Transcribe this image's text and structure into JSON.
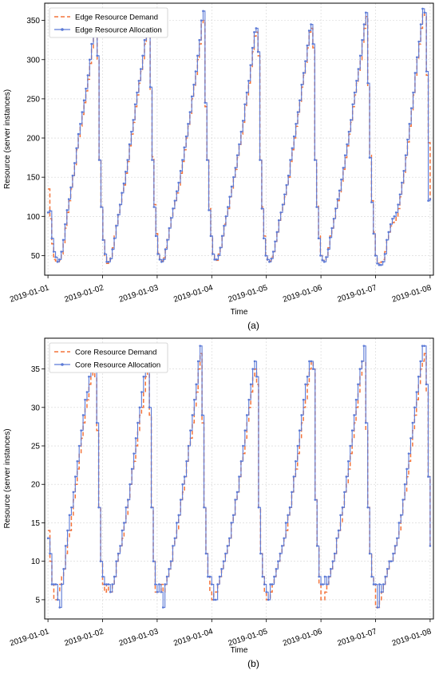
{
  "colors": {
    "demand": "#f4733a",
    "allocation": "#5b79d6",
    "grid": "#d4d4d4",
    "axis": "#000000"
  },
  "chart_data": [
    {
      "type": "line",
      "panel_label": "(a)",
      "xlabel": "Time",
      "ylabel": "Resource (server instances)",
      "x_ticks": [
        "2019-01-01",
        "2019-01-02",
        "2019-01-03",
        "2019-01-04",
        "2019-01-05",
        "2019-01-06",
        "2019-01-07",
        "2019-01-08"
      ],
      "y_ticks": [
        50,
        100,
        150,
        200,
        250,
        300,
        350
      ],
      "xlim": [
        -0.06,
        7.06
      ],
      "ylim": [
        25,
        372
      ],
      "grid": true,
      "legend_position": "top-left",
      "series": [
        {
          "name": "Edge Resource Demand",
          "style": "dashed",
          "color": "#f4733a",
          "values": [
            135,
            97,
            65,
            45,
            43,
            42,
            44,
            52,
            65,
            85,
            105,
            120,
            135,
            150,
            165,
            185,
            200,
            215,
            230,
            245,
            260,
            275,
            295,
            315,
            330,
            340,
            300,
            172,
            112,
            72,
            50,
            40,
            44,
            48,
            60,
            75,
            90,
            105,
            115,
            130,
            140,
            155,
            170,
            190,
            205,
            220,
            240,
            255,
            270,
            285,
            300,
            320,
            340,
            345,
            260,
            176,
            115,
            78,
            53,
            45,
            43,
            47,
            60,
            72,
            85,
            100,
            110,
            120,
            130,
            140,
            155,
            170,
            185,
            200,
            215,
            230,
            250,
            265,
            280,
            300,
            320,
            345,
            350,
            240,
            172,
            110,
            75,
            52,
            46,
            44,
            52,
            60,
            75,
            90,
            100,
            110,
            125,
            135,
            150,
            160,
            175,
            190,
            205,
            220,
            240,
            255,
            270,
            290,
            310,
            330,
            335,
            305,
            172,
            112,
            75,
            50,
            44,
            43,
            48,
            55,
            68,
            80,
            95,
            105,
            115,
            125,
            140,
            150,
            170,
            185,
            200,
            215,
            230,
            245,
            265,
            280,
            295,
            315,
            335,
            340,
            315,
            172,
            115,
            75,
            50,
            44,
            43,
            50,
            60,
            75,
            85,
            97,
            110,
            120,
            130,
            145,
            160,
            175,
            190,
            205,
            220,
            240,
            255,
            270,
            285,
            300,
            320,
            340,
            355,
            265,
            178,
            120,
            80,
            50,
            42,
            38,
            42,
            45,
            55,
            72,
            80,
            88,
            92,
            95,
            100,
            110,
            125,
            140,
            155,
            175,
            195,
            215,
            235,
            255,
            280,
            300,
            320,
            340,
            360,
            355,
            280,
            194,
            122
          ]
        },
        {
          "name": "Edge Resource Allocation",
          "style": "solid-markers",
          "color": "#5b79d6",
          "values": [
            105,
            107,
            72,
            55,
            48,
            42,
            45,
            55,
            70,
            90,
            108,
            122,
            137,
            152,
            168,
            187,
            205,
            218,
            233,
            248,
            263,
            280,
            300,
            320,
            335,
            345,
            305,
            172,
            112,
            70,
            52,
            42,
            42,
            46,
            58,
            72,
            88,
            102,
            115,
            130,
            142,
            157,
            172,
            192,
            208,
            223,
            243,
            258,
            273,
            288,
            305,
            325,
            345,
            348,
            265,
            172,
            112,
            75,
            52,
            45,
            42,
            45,
            58,
            70,
            85,
            98,
            110,
            120,
            132,
            143,
            158,
            172,
            188,
            202,
            218,
            233,
            253,
            268,
            285,
            305,
            325,
            350,
            362,
            245,
            172,
            108,
            75,
            52,
            45,
            45,
            50,
            60,
            75,
            88,
            100,
            112,
            125,
            138,
            150,
            162,
            178,
            192,
            208,
            222,
            243,
            258,
            273,
            293,
            315,
            335,
            340,
            310,
            172,
            110,
            72,
            50,
            45,
            42,
            46,
            55,
            68,
            80,
            95,
            105,
            115,
            128,
            140,
            152,
            172,
            187,
            202,
            218,
            233,
            248,
            268,
            283,
            298,
            318,
            337,
            345,
            320,
            172,
            112,
            72,
            50,
            44,
            42,
            48,
            58,
            73,
            85,
            97,
            110,
            122,
            133,
            147,
            162,
            178,
            192,
            208,
            223,
            243,
            258,
            273,
            288,
            305,
            325,
            345,
            360,
            270,
            175,
            118,
            78,
            50,
            40,
            38,
            38,
            42,
            52,
            70,
            80,
            90,
            97,
            100,
            105,
            115,
            128,
            143,
            158,
            178,
            198,
            218,
            238,
            258,
            283,
            303,
            323,
            345,
            365,
            360,
            285,
            120,
            122
          ]
        }
      ]
    },
    {
      "type": "line",
      "panel_label": "(b)",
      "xlabel": "Time",
      "ylabel": "Resource (server instances)",
      "x_ticks": [
        "2019-01-01",
        "2019-01-02",
        "2019-01-03",
        "2019-01-04",
        "2019-01-05",
        "2019-01-06",
        "2019-01-07",
        "2019-01-08"
      ],
      "y_ticks": [
        5,
        10,
        15,
        20,
        25,
        30,
        35
      ],
      "xlim": [
        -0.06,
        7.06
      ],
      "ylim": [
        2.5,
        39.0
      ],
      "grid": true,
      "legend_position": "top-left",
      "series": [
        {
          "name": "Core Resource Demand",
          "style": "dashed",
          "color": "#f4733a",
          "values": [
            14,
            10,
            7,
            5,
            5,
            6,
            7,
            8,
            9,
            11,
            13,
            14,
            16,
            18,
            20,
            22,
            24,
            26,
            28,
            30,
            31,
            33,
            34,
            35,
            34,
            27,
            17,
            10,
            7,
            6,
            7,
            6,
            6,
            7,
            8,
            10,
            11,
            12,
            13,
            15,
            16,
            18,
            20,
            22,
            23,
            25,
            27,
            29,
            30,
            32,
            34,
            35,
            29,
            17,
            10,
            6,
            6,
            6,
            7,
            6,
            7,
            8,
            9,
            10,
            12,
            13,
            14,
            16,
            18,
            19,
            21,
            23,
            25,
            26,
            28,
            30,
            32,
            35,
            37,
            28,
            17,
            11,
            8,
            6,
            5,
            6,
            6,
            7,
            8,
            9,
            10,
            11,
            12,
            13,
            15,
            16,
            18,
            19,
            21,
            23,
            24,
            26,
            28,
            30,
            32,
            34,
            35,
            33,
            17,
            11,
            8,
            6,
            5,
            5,
            6,
            7,
            8,
            9,
            10,
            11,
            12,
            13,
            14,
            16,
            17,
            19,
            21,
            22,
            24,
            26,
            28,
            30,
            31,
            33,
            35,
            36,
            35,
            18,
            12,
            7,
            5,
            5,
            6,
            7,
            8,
            9,
            10,
            11,
            13,
            14,
            15,
            17,
            19,
            20,
            22,
            24,
            26,
            28,
            30,
            32,
            34,
            36,
            36,
            27,
            17,
            11,
            8,
            7,
            4,
            4,
            5,
            6,
            7,
            8,
            9,
            10,
            10,
            11,
            12,
            13,
            14,
            16,
            18,
            19,
            21,
            23,
            25,
            27,
            29,
            31,
            33,
            35,
            36,
            37,
            32,
            21,
            12
          ]
        },
        {
          "name": "Core Resource Allocation",
          "style": "solid-markers",
          "color": "#5b79d6",
          "values": [
            13,
            11,
            7,
            7,
            7,
            5,
            4,
            7,
            9,
            12,
            14,
            16,
            17,
            19,
            21,
            23,
            25,
            27,
            29,
            31,
            32,
            34,
            35,
            36,
            35,
            28,
            17,
            10,
            8,
            7,
            7,
            7,
            6,
            7,
            8,
            10,
            11,
            12,
            14,
            15,
            17,
            18,
            20,
            22,
            24,
            26,
            28,
            30,
            32,
            34,
            35,
            36,
            30,
            17,
            10,
            7,
            6,
            7,
            6,
            4,
            7,
            8,
            9,
            10,
            12,
            13,
            15,
            16,
            18,
            20,
            21,
            23,
            25,
            27,
            29,
            31,
            33,
            36,
            38,
            29,
            17,
            11,
            8,
            8,
            7,
            5,
            5,
            7,
            8,
            9,
            10,
            11,
            12,
            13,
            15,
            16,
            18,
            19,
            21,
            23,
            25,
            27,
            29,
            31,
            33,
            35,
            36,
            34,
            17,
            11,
            8,
            7,
            6,
            5,
            7,
            7,
            8,
            9,
            10,
            11,
            12,
            13,
            15,
            16,
            17,
            19,
            21,
            23,
            25,
            27,
            29,
            31,
            33,
            34,
            36,
            36,
            35,
            18,
            12,
            8,
            7,
            7,
            8,
            7,
            8,
            9,
            10,
            11,
            13,
            14,
            16,
            17,
            19,
            21,
            23,
            25,
            27,
            29,
            31,
            33,
            35,
            36,
            38,
            28,
            17,
            11,
            8,
            7,
            7,
            4,
            7,
            6,
            7,
            8,
            9,
            10,
            10,
            11,
            12,
            13,
            15,
            16,
            18,
            20,
            22,
            24,
            26,
            28,
            30,
            32,
            34,
            36,
            38,
            38,
            33,
            21,
            12
          ]
        }
      ]
    }
  ]
}
